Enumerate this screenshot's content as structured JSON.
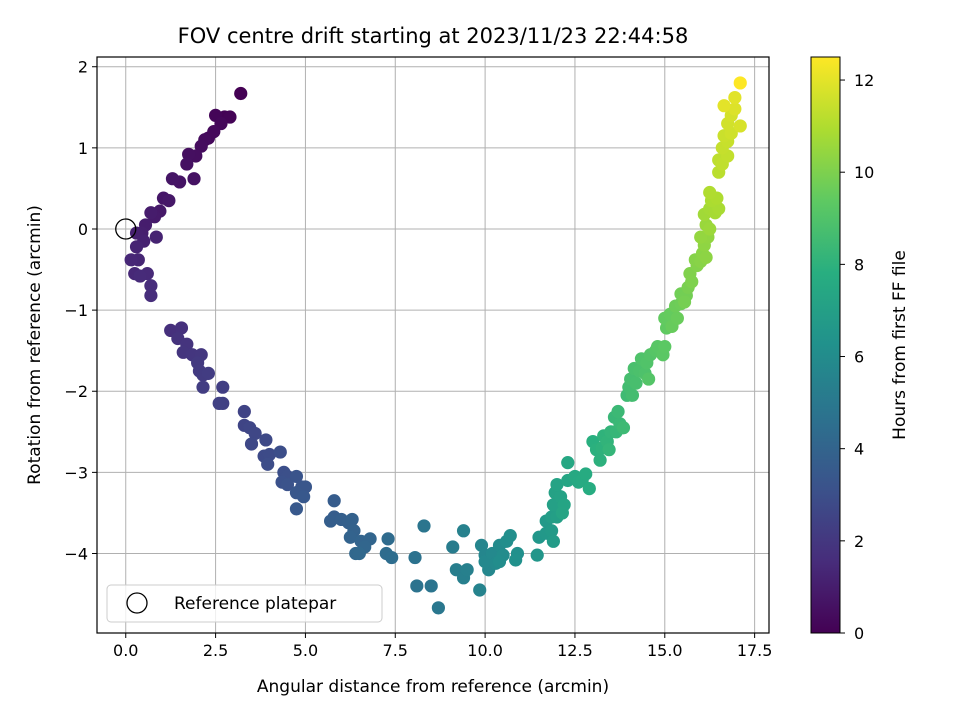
{
  "chart_data": {
    "type": "scatter",
    "title": "FOV centre drift starting at 2023/11/23 22:44:58",
    "xlabel": "Angular distance from reference (arcmin)",
    "ylabel": "Rotation from reference (arcmin)",
    "xlim": [
      -0.8,
      17.9
    ],
    "ylim": [
      -4.98,
      2.12
    ],
    "xticks": [
      0.0,
      2.5,
      5.0,
      7.5,
      10.0,
      12.5,
      15.0,
      17.5
    ],
    "xtick_labels": [
      "0.0",
      "2.5",
      "5.0",
      "7.5",
      "10.0",
      "12.5",
      "15.0",
      "17.5"
    ],
    "yticks": [
      2,
      1,
      0,
      -1,
      -2,
      -3,
      -4
    ],
    "ytick_labels": [
      "2",
      "1",
      "0",
      "−1",
      "−2",
      "−3",
      "−4"
    ],
    "grid": true,
    "legend": {
      "position": "lower-left",
      "entries": [
        "Reference platepar"
      ]
    },
    "reference_point": {
      "x": 0.0,
      "y": 0.0
    },
    "colorbar": {
      "label": "Hours from first FF file",
      "colormap": "viridis",
      "range": [
        0,
        12.5
      ],
      "ticks": [
        0,
        2,
        4,
        6,
        8,
        10,
        12
      ],
      "tick_labels": [
        "0",
        "2",
        "4",
        "6",
        "8",
        "10",
        "12"
      ]
    },
    "c": "time (hours)",
    "points": [
      [
        3.2,
        1.67,
        0.0
      ],
      [
        2.75,
        1.38,
        0.05
      ],
      [
        2.9,
        1.38,
        0.1
      ],
      [
        2.5,
        1.4,
        0.15
      ],
      [
        2.65,
        1.3,
        0.2
      ],
      [
        2.3,
        1.12,
        0.25
      ],
      [
        2.45,
        1.2,
        0.3
      ],
      [
        2.2,
        1.1,
        0.35
      ],
      [
        2.1,
        1.02,
        0.4
      ],
      [
        1.95,
        0.9,
        0.45
      ],
      [
        1.75,
        0.92,
        0.5
      ],
      [
        1.7,
        0.8,
        0.55
      ],
      [
        1.9,
        0.62,
        0.6
      ],
      [
        1.5,
        0.58,
        0.65
      ],
      [
        1.3,
        0.62,
        0.7
      ],
      [
        1.05,
        0.38,
        0.75
      ],
      [
        1.2,
        0.35,
        0.8
      ],
      [
        0.95,
        0.22,
        0.85
      ],
      [
        0.8,
        0.15,
        0.9
      ],
      [
        0.7,
        0.2,
        0.95
      ],
      [
        0.55,
        0.05,
        1.0
      ],
      [
        0.45,
        -0.05,
        1.05
      ],
      [
        0.3,
        -0.05,
        1.1
      ],
      [
        0.5,
        -0.15,
        1.15
      ],
      [
        0.85,
        -0.1,
        1.2
      ],
      [
        0.3,
        -0.22,
        1.25
      ],
      [
        0.35,
        -0.38,
        1.3
      ],
      [
        0.15,
        -0.38,
        1.35
      ],
      [
        0.25,
        -0.55,
        1.4
      ],
      [
        0.6,
        -0.55,
        1.45
      ],
      [
        0.4,
        -0.58,
        1.5
      ],
      [
        0.7,
        -0.7,
        1.55
      ],
      [
        0.7,
        -0.82,
        1.6
      ],
      [
        1.25,
        -1.25,
        1.7
      ],
      [
        1.55,
        -1.22,
        1.75
      ],
      [
        1.45,
        -1.35,
        1.8
      ],
      [
        1.7,
        -1.42,
        1.85
      ],
      [
        1.6,
        -1.52,
        1.9
      ],
      [
        1.85,
        -1.55,
        1.95
      ],
      [
        2.1,
        -1.55,
        2.0
      ],
      [
        2.0,
        -1.65,
        2.05
      ],
      [
        2.05,
        -1.75,
        2.1
      ],
      [
        2.15,
        -1.8,
        2.15
      ],
      [
        2.3,
        -1.78,
        2.2
      ],
      [
        2.15,
        -1.95,
        2.25
      ],
      [
        2.7,
        -1.95,
        2.3
      ],
      [
        2.7,
        -2.15,
        2.35
      ],
      [
        2.6,
        -2.15,
        2.4
      ],
      [
        3.3,
        -2.25,
        2.5
      ],
      [
        3.3,
        -2.42,
        2.55
      ],
      [
        3.45,
        -2.45,
        2.6
      ],
      [
        3.6,
        -2.52,
        2.65
      ],
      [
        3.5,
        -2.65,
        2.7
      ],
      [
        3.9,
        -2.6,
        2.75
      ],
      [
        3.85,
        -2.8,
        2.8
      ],
      [
        4.0,
        -2.78,
        2.85
      ],
      [
        3.95,
        -2.9,
        2.9
      ],
      [
        4.3,
        -2.75,
        2.95
      ],
      [
        4.4,
        -3.0,
        3.0
      ],
      [
        4.5,
        -3.05,
        3.05
      ],
      [
        4.35,
        -3.12,
        3.1
      ],
      [
        4.5,
        -3.15,
        3.15
      ],
      [
        4.75,
        -3.05,
        3.2
      ],
      [
        4.9,
        -3.18,
        3.25
      ],
      [
        5.0,
        -3.18,
        3.3
      ],
      [
        4.75,
        -3.25,
        3.35
      ],
      [
        4.95,
        -3.3,
        3.4
      ],
      [
        4.75,
        -3.45,
        3.45
      ],
      [
        5.8,
        -3.35,
        3.6
      ],
      [
        5.8,
        -3.55,
        3.65
      ],
      [
        5.7,
        -3.6,
        3.7
      ],
      [
        6.0,
        -3.58,
        3.75
      ],
      [
        6.2,
        -3.62,
        3.8
      ],
      [
        6.3,
        -3.58,
        3.85
      ],
      [
        6.35,
        -3.72,
        3.9
      ],
      [
        6.25,
        -3.8,
        3.95
      ],
      [
        6.55,
        -3.85,
        4.0
      ],
      [
        6.8,
        -3.82,
        4.05
      ],
      [
        6.65,
        -3.92,
        4.1
      ],
      [
        6.4,
        -4.0,
        4.15
      ],
      [
        6.5,
        -4.0,
        4.2
      ],
      [
        7.3,
        -3.82,
        4.35
      ],
      [
        7.25,
        -4.0,
        4.4
      ],
      [
        7.4,
        -4.05,
        4.45
      ],
      [
        8.05,
        -4.05,
        4.7
      ],
      [
        8.1,
        -4.4,
        4.75
      ],
      [
        8.5,
        -4.4,
        4.8
      ],
      [
        8.3,
        -3.66,
        4.85
      ],
      [
        8.7,
        -4.67,
        4.95
      ],
      [
        9.1,
        -3.92,
        5.2
      ],
      [
        9.2,
        -4.2,
        5.3
      ],
      [
        9.4,
        -4.3,
        5.35
      ],
      [
        9.5,
        -4.2,
        5.4
      ],
      [
        9.4,
        -3.72,
        5.45
      ],
      [
        9.85,
        -4.45,
        5.55
      ],
      [
        9.9,
        -3.9,
        5.65
      ],
      [
        10.0,
        -4.02,
        5.7
      ],
      [
        10.1,
        -4.2,
        5.75
      ],
      [
        10.0,
        -4.1,
        5.8
      ],
      [
        10.2,
        -4.0,
        5.85
      ],
      [
        10.3,
        -4.12,
        5.9
      ],
      [
        10.4,
        -3.9,
        5.95
      ],
      [
        10.5,
        -4.02,
        6.0
      ],
      [
        10.4,
        -4.1,
        6.05
      ],
      [
        10.6,
        -3.85,
        6.1
      ],
      [
        10.7,
        -3.78,
        6.15
      ],
      [
        10.9,
        -4.0,
        6.2
      ],
      [
        10.85,
        -4.08,
        6.25
      ],
      [
        11.45,
        -4.02,
        6.5
      ],
      [
        11.5,
        -3.8,
        6.55
      ],
      [
        11.7,
        -3.75,
        6.65
      ],
      [
        11.7,
        -3.6,
        6.7
      ],
      [
        11.85,
        -3.72,
        6.75
      ],
      [
        11.9,
        -3.85,
        6.8
      ],
      [
        11.85,
        -3.55,
        6.9
      ],
      [
        12.0,
        -3.55,
        7.0
      ],
      [
        11.9,
        -3.4,
        7.05
      ],
      [
        11.95,
        -3.25,
        7.1
      ],
      [
        12.1,
        -3.3,
        7.15
      ],
      [
        12.0,
        -3.15,
        7.2
      ],
      [
        12.2,
        -3.4,
        7.25
      ],
      [
        12.15,
        -3.5,
        7.3
      ],
      [
        12.3,
        -3.1,
        7.35
      ],
      [
        12.3,
        -2.88,
        7.45
      ],
      [
        12.5,
        -3.05,
        7.5
      ],
      [
        12.6,
        -3.12,
        7.55
      ],
      [
        12.7,
        -3.1,
        7.6
      ],
      [
        12.8,
        -3.02,
        7.65
      ],
      [
        12.9,
        -3.2,
        7.7
      ],
      [
        13.0,
        -2.62,
        7.85
      ],
      [
        13.1,
        -2.72,
        7.9
      ],
      [
        13.2,
        -2.85,
        7.95
      ],
      [
        13.25,
        -2.7,
        8.0
      ],
      [
        13.3,
        -2.55,
        8.05
      ],
      [
        13.4,
        -2.62,
        8.1
      ],
      [
        13.5,
        -2.5,
        8.15
      ],
      [
        13.45,
        -2.72,
        8.2
      ],
      [
        13.65,
        -2.5,
        8.25
      ],
      [
        13.6,
        -2.32,
        8.3
      ],
      [
        13.75,
        -2.4,
        8.35
      ],
      [
        13.7,
        -2.25,
        8.4
      ],
      [
        13.85,
        -2.45,
        8.45
      ],
      [
        13.95,
        -2.05,
        8.5
      ],
      [
        14.0,
        -1.95,
        8.6
      ],
      [
        14.1,
        -2.05,
        8.65
      ],
      [
        14.05,
        -1.85,
        8.7
      ],
      [
        14.2,
        -1.9,
        8.75
      ],
      [
        14.15,
        -1.72,
        8.8
      ],
      [
        14.3,
        -1.75,
        8.85
      ],
      [
        14.45,
        -1.78,
        8.9
      ],
      [
        14.35,
        -1.6,
        8.95
      ],
      [
        14.5,
        -1.65,
        9.0
      ],
      [
        14.6,
        -1.55,
        9.05
      ],
      [
        14.55,
        -1.85,
        9.1
      ],
      [
        14.75,
        -1.5,
        9.15
      ],
      [
        14.8,
        -1.45,
        9.2
      ],
      [
        14.95,
        -1.55,
        9.25
      ],
      [
        15.0,
        -1.45,
        9.3
      ],
      [
        15.05,
        -1.22,
        9.4
      ],
      [
        15.0,
        -1.1,
        9.45
      ],
      [
        15.15,
        -1.05,
        9.5
      ],
      [
        15.2,
        -1.2,
        9.55
      ],
      [
        15.35,
        -1.1,
        9.6
      ],
      [
        15.3,
        -0.95,
        9.65
      ],
      [
        15.45,
        -0.92,
        9.7
      ],
      [
        15.45,
        -0.8,
        9.75
      ],
      [
        15.6,
        -0.82,
        9.8
      ],
      [
        15.55,
        -0.9,
        9.85
      ],
      [
        15.65,
        -0.72,
        9.9
      ],
      [
        15.75,
        -0.65,
        10.0
      ],
      [
        15.7,
        -0.55,
        10.05
      ],
      [
        15.9,
        -0.45,
        10.1
      ],
      [
        15.85,
        -0.38,
        10.15
      ],
      [
        16.0,
        -0.4,
        10.2
      ],
      [
        16.05,
        -0.3,
        10.25
      ],
      [
        16.15,
        -0.35,
        10.3
      ],
      [
        16.1,
        -0.2,
        10.35
      ],
      [
        16.2,
        -0.1,
        10.4
      ],
      [
        16.0,
        -0.1,
        10.45
      ],
      [
        16.15,
        0.05,
        10.55
      ],
      [
        16.25,
        0.0,
        10.6
      ],
      [
        16.1,
        0.18,
        10.7
      ],
      [
        16.25,
        0.25,
        10.75
      ],
      [
        16.4,
        0.2,
        10.8
      ],
      [
        16.5,
        0.25,
        10.85
      ],
      [
        16.3,
        0.35,
        10.9
      ],
      [
        16.45,
        0.38,
        10.95
      ],
      [
        16.25,
        0.45,
        11.0
      ],
      [
        16.5,
        0.7,
        11.2
      ],
      [
        16.5,
        0.85,
        11.25
      ],
      [
        16.6,
        0.8,
        11.3
      ],
      [
        16.75,
        0.9,
        11.35
      ],
      [
        16.6,
        1.0,
        11.4
      ],
      [
        16.75,
        1.08,
        11.45
      ],
      [
        16.65,
        1.15,
        11.5
      ],
      [
        16.85,
        1.18,
        11.6
      ],
      [
        16.75,
        1.3,
        11.65
      ],
      [
        16.85,
        1.4,
        11.7
      ],
      [
        17.1,
        1.27,
        11.75
      ],
      [
        16.95,
        1.48,
        11.85
      ],
      [
        16.95,
        1.62,
        11.95
      ],
      [
        16.65,
        1.52,
        12.0
      ],
      [
        17.1,
        1.8,
        12.5
      ]
    ]
  }
}
